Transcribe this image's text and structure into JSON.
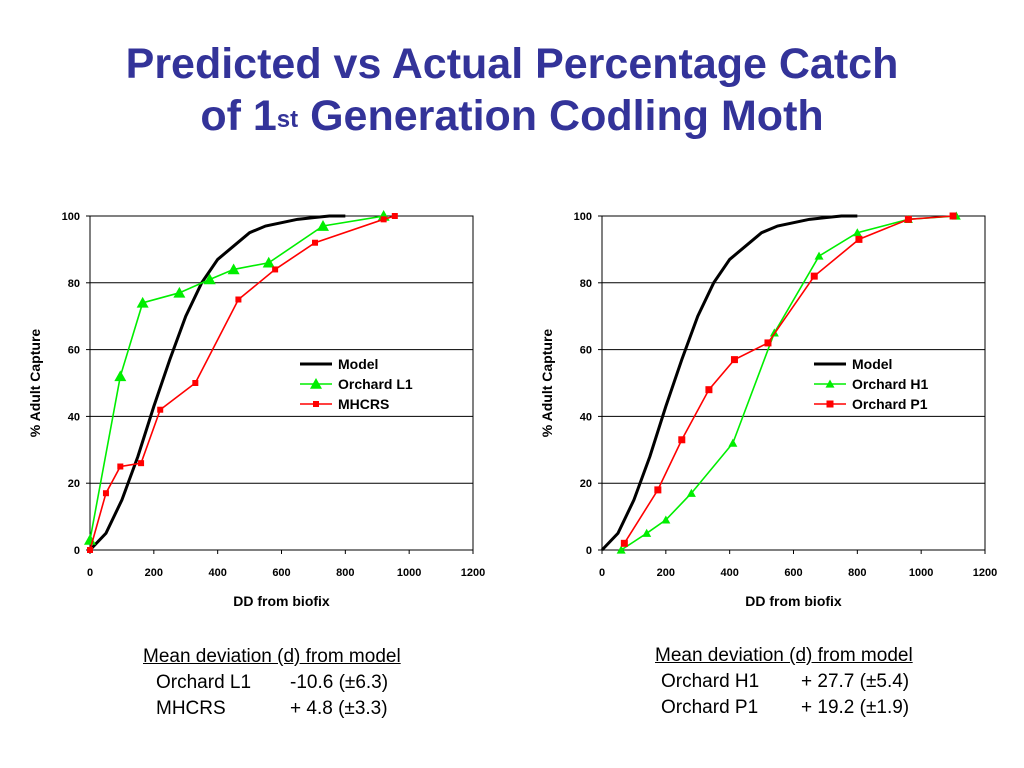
{
  "title": {
    "line1": "Predicted vs Actual Percentage Catch",
    "line2_prefix": "of 1",
    "line2_sup": "st",
    "line2_suffix": " Generation Codling Moth"
  },
  "chart_data": [
    {
      "type": "line",
      "xlabel": "DD from biofix",
      "ylabel": "% Adult Capture",
      "xlim": [
        0,
        1200
      ],
      "ylim": [
        0,
        100
      ],
      "xticks": [
        0,
        200,
        400,
        600,
        800,
        1000,
        1200
      ],
      "yticks": [
        0,
        20,
        40,
        60,
        80,
        100
      ],
      "grid": "horizontal",
      "legend_position": "right",
      "series": [
        {
          "name": "Model",
          "color": "#000000",
          "marker": "none",
          "x": [
            0,
            50,
            100,
            150,
            200,
            250,
            300,
            350,
            400,
            450,
            500,
            550,
            600,
            650,
            700,
            750,
            800
          ],
          "y": [
            0,
            5,
            15,
            28,
            43,
            57,
            70,
            80,
            87,
            91,
            95,
            97,
            98,
            99,
            99.5,
            100,
            100
          ]
        },
        {
          "name": "Orchard L1",
          "color": "#00ee00",
          "marker": "triangle",
          "x": [
            0,
            95,
            165,
            280,
            375,
            450,
            560,
            730,
            920
          ],
          "y": [
            3,
            52,
            74,
            77,
            81,
            84,
            86,
            97,
            100
          ]
        },
        {
          "name": "MHCRS",
          "color": "#ff0000",
          "marker": "square",
          "x": [
            0,
            50,
            95,
            160,
            220,
            330,
            465,
            580,
            705,
            920,
            955
          ],
          "y": [
            0,
            17,
            25,
            26,
            42,
            50,
            75,
            84,
            92,
            99,
            100
          ]
        }
      ]
    },
    {
      "type": "line",
      "xlabel": "DD from biofix",
      "ylabel": "% Adult Capture",
      "xlim": [
        0,
        1200
      ],
      "ylim": [
        0,
        100
      ],
      "xticks": [
        0,
        200,
        400,
        600,
        800,
        1000,
        1200
      ],
      "yticks": [
        0,
        20,
        40,
        60,
        80,
        100
      ],
      "grid": "horizontal",
      "legend_position": "right",
      "series": [
        {
          "name": "Model",
          "color": "#000000",
          "marker": "none",
          "x": [
            0,
            50,
            100,
            150,
            200,
            250,
            300,
            350,
            400,
            450,
            500,
            550,
            600,
            650,
            700,
            750,
            800
          ],
          "y": [
            0,
            5,
            15,
            28,
            43,
            57,
            70,
            80,
            87,
            91,
            95,
            97,
            98,
            99,
            99.5,
            100,
            100
          ]
        },
        {
          "name": "Orchard H1",
          "color": "#00ee00",
          "marker": "triangle",
          "x": [
            60,
            140,
            200,
            280,
            410,
            540,
            680,
            800,
            960,
            1110
          ],
          "y": [
            0,
            5,
            9,
            17,
            32,
            65,
            88,
            95,
            99,
            100
          ]
        },
        {
          "name": "Orchard P1",
          "color": "#ff0000",
          "marker": "square",
          "x": [
            70,
            175,
            250,
            335,
            415,
            520,
            665,
            805,
            960,
            1100
          ],
          "y": [
            2,
            18,
            33,
            48,
            57,
            62,
            82,
            93,
            99,
            100
          ]
        }
      ]
    }
  ],
  "deviation": [
    {
      "heading": "Mean deviation (d) from model",
      "rows": [
        {
          "label": "Orchard L1",
          "value": "-10.6 (±6.3)"
        },
        {
          "label": "MHCRS",
          "value": "+ 4.8 (±3.3)"
        }
      ]
    },
    {
      "heading": "Mean deviation (d) from model",
      "rows": [
        {
          "label": "Orchard H1",
          "value": "+ 27.7 (±5.4)"
        },
        {
          "label": "Orchard P1",
          "value": "+ 19.2 (±1.9)"
        }
      ]
    }
  ]
}
